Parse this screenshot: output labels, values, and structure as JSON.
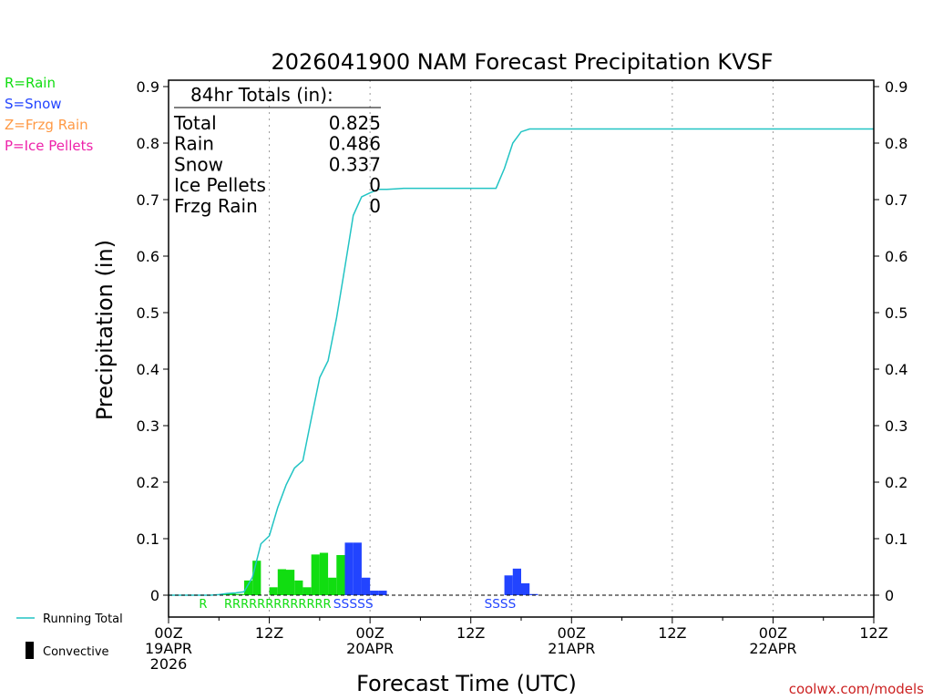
{
  "chart_data": {
    "type": "bar",
    "title": "2026041900 NAM Forecast Precipitation KVSF",
    "xlabel": "Forecast Time (UTC)",
    "ylabel": "Precipitation (in)",
    "ylim": [
      -0.04,
      0.9
    ],
    "yticks": [
      0,
      0.1,
      0.2,
      0.3,
      0.4,
      0.5,
      0.6,
      0.7,
      0.8,
      0.9
    ],
    "ytick_labels": [
      "0",
      "0.1",
      "0.2",
      "0.3",
      "0.4",
      "0.5",
      "0.6",
      "0.7",
      "0.8",
      "0.9"
    ],
    "xlim_hours": [
      0,
      84
    ],
    "xticks": [
      {
        "hour": 0,
        "lines": [
          "00Z",
          "19APR",
          "2026"
        ]
      },
      {
        "hour": 12,
        "lines": [
          "12Z"
        ]
      },
      {
        "hour": 24,
        "lines": [
          "00Z",
          "20APR"
        ]
      },
      {
        "hour": 36,
        "lines": [
          "12Z"
        ]
      },
      {
        "hour": 48,
        "lines": [
          "00Z",
          "21APR"
        ]
      },
      {
        "hour": 60,
        "lines": [
          "12Z"
        ]
      },
      {
        "hour": 72,
        "lines": [
          "00Z",
          "22APR"
        ]
      },
      {
        "hour": 84,
        "lines": [
          "12Z"
        ]
      }
    ],
    "vgrid_hours": [
      12,
      24,
      36,
      48,
      60,
      72
    ],
    "bars": [
      {
        "hour": 7,
        "value": 0.002,
        "type": "rain"
      },
      {
        "hour": 8,
        "value": 0.003,
        "type": "rain"
      },
      {
        "hour": 9,
        "value": 0.002,
        "type": "rain"
      },
      {
        "hour": 10,
        "value": 0.026,
        "type": "rain"
      },
      {
        "hour": 11,
        "value": 0.061,
        "type": "rain"
      },
      {
        "hour": 13,
        "value": 0.014,
        "type": "rain"
      },
      {
        "hour": 14,
        "value": 0.046,
        "type": "rain"
      },
      {
        "hour": 15,
        "value": 0.045,
        "type": "rain"
      },
      {
        "hour": 16,
        "value": 0.026,
        "type": "rain"
      },
      {
        "hour": 17,
        "value": 0.014,
        "type": "rain"
      },
      {
        "hour": 18,
        "value": 0.072,
        "type": "rain"
      },
      {
        "hour": 19,
        "value": 0.075,
        "type": "rain"
      },
      {
        "hour": 20,
        "value": 0.031,
        "type": "rain"
      },
      {
        "hour": 21,
        "value": 0.071,
        "type": "rain"
      },
      {
        "hour": 22,
        "value": 0.093,
        "type": "snow"
      },
      {
        "hour": 23,
        "value": 0.093,
        "type": "snow"
      },
      {
        "hour": 24,
        "value": 0.031,
        "type": "snow"
      },
      {
        "hour": 25,
        "value": 0.008,
        "type": "snow"
      },
      {
        "hour": 26,
        "value": 0.008,
        "type": "snow"
      },
      {
        "hour": 41,
        "value": 0.035,
        "type": "snow"
      },
      {
        "hour": 42,
        "value": 0.047,
        "type": "snow"
      },
      {
        "hour": 43,
        "value": 0.021,
        "type": "snow"
      },
      {
        "hour": 44,
        "value": 0.002,
        "type": "snow"
      }
    ],
    "running_total": {
      "name": "Running Total",
      "x": [
        0,
        1,
        2,
        3,
        4,
        5,
        6,
        7,
        8,
        9,
        10,
        11,
        12,
        13,
        14,
        15,
        16,
        17,
        18,
        19,
        20,
        21,
        22,
        23,
        24,
        25,
        26,
        27,
        28,
        30,
        36,
        38,
        39,
        40,
        41,
        42,
        43,
        44,
        84
      ],
      "y": [
        0,
        0,
        0,
        0,
        0,
        0,
        0.001,
        0.003,
        0.004,
        0.006,
        0.032,
        0.091,
        0.105,
        0.155,
        0.195,
        0.225,
        0.238,
        0.312,
        0.385,
        0.415,
        0.49,
        0.58,
        0.672,
        0.705,
        0.712,
        0.718,
        0.718,
        0.719,
        0.72,
        0.72,
        0.72,
        0.72,
        0.72,
        0.755,
        0.8,
        0.82,
        0.825,
        0.825,
        0.825
      ]
    },
    "precip_markers": [
      {
        "from": 4,
        "to": 4,
        "text": "R",
        "type": "rain"
      },
      {
        "from": 7,
        "to": 19,
        "text": "RRRRRRRRRRRRR",
        "type": "rain"
      },
      {
        "from": 20,
        "to": 24,
        "text": "SSSSS",
        "type": "snow"
      },
      {
        "from": 38,
        "to": 41,
        "text": "SSSS",
        "type": "snow"
      }
    ],
    "totals": {
      "header": "84hr Totals (in):",
      "rows": [
        {
          "label": "Total",
          "value": "0.825"
        },
        {
          "label": "Rain",
          "value": "0.486"
        },
        {
          "label": "Snow",
          "value": "0.337"
        },
        {
          "label": "Ice Pellets",
          "value": "0"
        },
        {
          "label": "Frzg Rain",
          "value": "0"
        }
      ]
    },
    "type_legend": [
      {
        "text": "R=Rain",
        "type": "rain"
      },
      {
        "text": "S=Snow",
        "type": "snow"
      },
      {
        "text": "Z=Frzg Rain",
        "type": "frzg"
      },
      {
        "text": "P=Ice Pellets",
        "type": "ice"
      }
    ],
    "line_legend": [
      {
        "text": "Running Total",
        "kind": "line"
      },
      {
        "text": "Convective",
        "kind": "bar"
      }
    ],
    "credit": "coolwx.com/models",
    "colors": {
      "rain": "#11dd11",
      "snow": "#2244ff",
      "frzg": "#ff9944",
      "ice": "#ee22aa",
      "running_total": "#22c4c4",
      "axis": "#000000",
      "grid": "#9a9a9a",
      "credit": "#cc2222"
    }
  }
}
